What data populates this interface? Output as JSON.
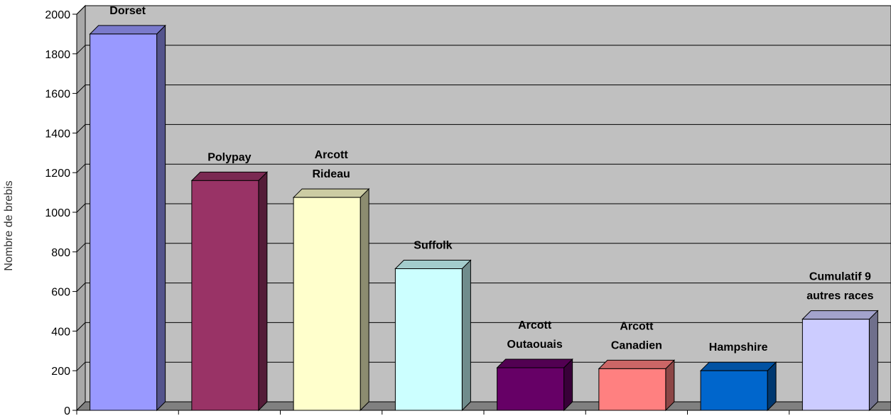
{
  "chart_data": {
    "type": "bar",
    "title": "",
    "xlabel": "",
    "ylabel": "Nombre de brebis",
    "ylim": [
      0,
      2000
    ],
    "yticks": [
      0,
      200,
      400,
      600,
      800,
      1000,
      1200,
      1400,
      1600,
      1800,
      2000
    ],
    "grid": true,
    "legend": "none",
    "categories": [
      [
        "Dorset"
      ],
      [
        "Polypay"
      ],
      [
        "Arcott",
        "Rideau"
      ],
      [
        "Suffolk"
      ],
      [
        "Arcott",
        "Outaouais"
      ],
      [
        "Arcott",
        "Canadien"
      ],
      [
        "Hampshire"
      ],
      [
        "Cumulatif 9",
        "autres races"
      ]
    ],
    "values": [
      1900,
      1160,
      1075,
      715,
      215,
      210,
      200,
      460
    ],
    "colors": [
      "#9999FF",
      "#993366",
      "#FFFFCC",
      "#CCFFFF",
      "#660066",
      "#FF8080",
      "#0066CC",
      "#CCCCFF"
    ],
    "plot_background": "#C0C0C0"
  }
}
